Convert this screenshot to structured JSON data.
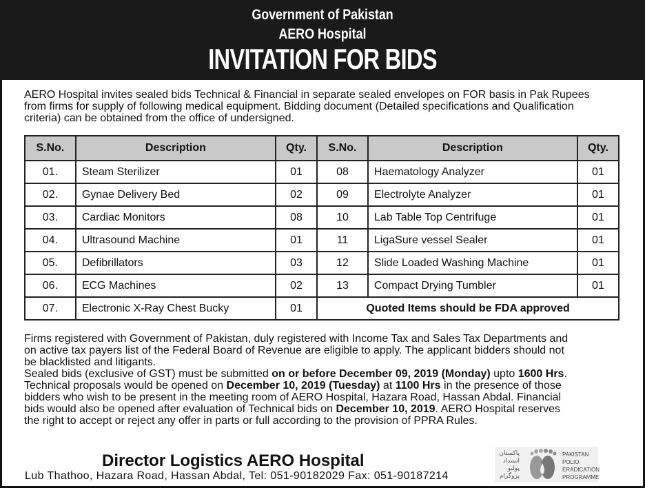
{
  "header": {
    "line1": "Government of Pakistan",
    "line2": "AERO Hospital",
    "title": "INVITATION FOR BIDS"
  },
  "intro": [
    [
      {
        "t": "AERO Hospital invites sealed bids Technical & Financial in separate sealed envelopes on FOR basis in Pak Rupees"
      }
    ],
    [
      {
        "t": "from firms for supply of following medical equipment. Bidding document (Detailed specifications and Qualification"
      }
    ],
    [
      {
        "t": "criteria) can be obtained from the office of undersigned."
      }
    ]
  ],
  "table": {
    "headers": [
      "S.No.",
      "Description",
      "Qty.",
      "S.No.",
      "Description",
      "Qty."
    ],
    "rows": [
      [
        "01.",
        "Steam Sterilizer",
        "01",
        "08",
        "Haematology Analyzer",
        "01"
      ],
      [
        "02.",
        "Gynae Delivery Bed",
        "02",
        "09",
        "Electrolyte Analyzer",
        "01"
      ],
      [
        "03.",
        "Cardiac Monitors",
        "08",
        "10",
        "Lab Table Top Centrifuge",
        "01"
      ],
      [
        "04.",
        "Ultrasound Machine",
        "01",
        "11",
        "LigaSure vessel Sealer",
        "01"
      ],
      [
        "05.",
        "Defibrillators",
        "03",
        "12",
        "Slide Loaded Washing Machine",
        "01"
      ],
      [
        "06.",
        "ECG Machines",
        "02",
        "13",
        "Compact Drying Tumbler",
        "01"
      ]
    ],
    "last_row": [
      "07.",
      "Electronic X-Ray Chest Bucky",
      "01"
    ],
    "note": "Quoted Items should be FDA approved"
  },
  "eligibility": [
    [
      {
        "t": "Firms registered with Government of Pakistan, duly registered with Income Tax and Sales Tax Departments and"
      }
    ],
    [
      {
        "t": "on  active tax payers list of the Federal Board of Revenue are eligible to apply. The applicant bidders should not"
      }
    ],
    [
      {
        "t": "be blacklisted and litigants."
      }
    ],
    [
      {
        "t": "Sealed bids (exclusive of GST) must be submitted  "
      },
      {
        "t": "on or before December 09, 2019 (Monday)",
        "b": true
      },
      {
        "t": " upto "
      },
      {
        "t": "1600 Hrs",
        "b": true
      },
      {
        "t": "."
      }
    ],
    [
      {
        "t": "Technical proposals would be opened on "
      },
      {
        "t": "December 10, 2019 (Tuesday)",
        "b": true
      },
      {
        "t": " at "
      },
      {
        "t": "1100 Hrs",
        "b": true
      },
      {
        "t": " in the presence of those"
      }
    ],
    [
      {
        "t": "bidders who wish to be present in the meeting room of AERO Hospital, Hazara Road, Hassan Abdal. Financial"
      }
    ],
    [
      {
        "t": "bids would also be opened after evaluation of Technical bids on "
      },
      {
        "t": "December 10, 2019",
        "b": true
      },
      {
        "t": ". AERO Hospital reserves"
      }
    ],
    [
      {
        "t": "the right to accept or reject any offer in parts or full according to the provision of PPRA Rules."
      }
    ]
  ],
  "footer": {
    "signatory": "Director Logistics AERO Hospital",
    "address": "Lub Thathoo, Hazara Road, Hassan Abdal, Tel: 051-90182029 Fax: 051-90187214",
    "logo_text": [
      "PAKISTAN",
      "POLIO",
      "ERADICATION",
      "PROGRAMME"
    ],
    "logo_urdu": [
      "پاکستان",
      "انسداد",
      "پولیو",
      "پروگرام"
    ]
  }
}
